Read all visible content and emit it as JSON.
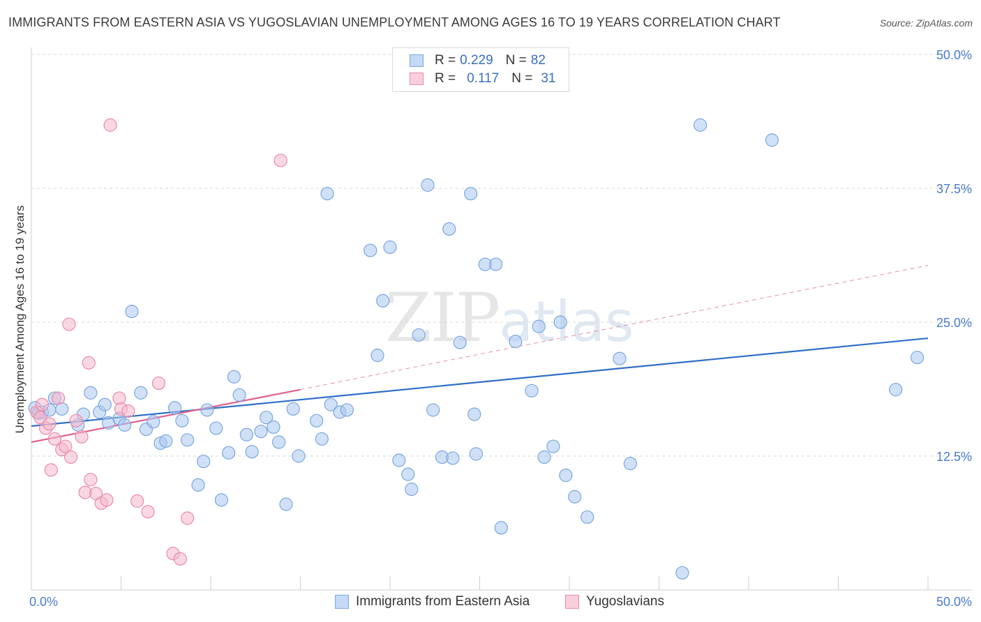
{
  "title": "IMMIGRANTS FROM EASTERN ASIA VS YUGOSLAVIAN UNEMPLOYMENT AMONG AGES 16 TO 19 YEARS CORRELATION CHART",
  "source": "Source: ZipAtlas.com",
  "watermark": {
    "zip": "ZIP",
    "atlas": "atlas"
  },
  "legend": {
    "r_label": "R =",
    "n_label": "N =",
    "rows": [
      {
        "r": "0.229",
        "n": "82"
      },
      {
        "r": "0.117",
        "n": "31"
      }
    ]
  },
  "colors": {
    "blue_fill": "#aac8f0",
    "blue_stroke": "#7aa6e0",
    "blue_line": "#2f6fc8",
    "pink_fill": "#f5b8cc",
    "pink_stroke": "#e98aaa",
    "pink_line": "#e0608e",
    "grid": "#d8d8d8",
    "tick_text": "#4a7cc9"
  },
  "chart_data": {
    "type": "scatter",
    "title": "IMMIGRANTS FROM EASTERN ASIA VS YUGOSLAVIAN UNEMPLOYMENT AMONG AGES 16 TO 19 YEARS CORRELATION CHART",
    "xlabel": "",
    "ylabel": "Unemployment Among Ages 16 to 19 years",
    "xlim": [
      0,
      50
    ],
    "ylim": [
      0,
      50
    ],
    "x_tick_labels": [
      "0.0%",
      "50.0%"
    ],
    "y_ticks": [
      12.5,
      25.0,
      37.5,
      50.0
    ],
    "y_tick_labels": [
      "12.5%",
      "25.0%",
      "37.5%",
      "50.0%"
    ],
    "grid": "horizontal dashed",
    "legend_placement": "top-center and bottom",
    "series": [
      {
        "name": "Immigrants from Eastern Asia",
        "color": "#aac8f0",
        "r": 0.229,
        "n": 82,
        "trend": {
          "x": [
            0,
            50
          ],
          "y": [
            15.3,
            23.5
          ]
        },
        "points": [
          [
            0.2,
            17.0
          ],
          [
            0.6,
            16.6
          ],
          [
            1.0,
            16.8
          ],
          [
            1.3,
            17.9
          ],
          [
            1.7,
            16.9
          ],
          [
            2.6,
            15.4
          ],
          [
            2.9,
            16.4
          ],
          [
            3.3,
            18.4
          ],
          [
            3.8,
            16.6
          ],
          [
            4.1,
            17.3
          ],
          [
            4.3,
            15.6
          ],
          [
            4.9,
            16.0
          ],
          [
            5.2,
            15.4
          ],
          [
            5.6,
            26.0
          ],
          [
            6.1,
            18.4
          ],
          [
            6.4,
            15.0
          ],
          [
            6.8,
            15.7
          ],
          [
            7.2,
            13.7
          ],
          [
            7.5,
            13.9
          ],
          [
            8.0,
            17.0
          ],
          [
            8.4,
            15.8
          ],
          [
            8.7,
            14.0
          ],
          [
            9.3,
            9.8
          ],
          [
            9.6,
            12.0
          ],
          [
            9.8,
            16.8
          ],
          [
            10.3,
            15.1
          ],
          [
            10.6,
            8.4
          ],
          [
            11.0,
            12.8
          ],
          [
            11.3,
            19.9
          ],
          [
            11.6,
            18.2
          ],
          [
            12.0,
            14.5
          ],
          [
            12.3,
            12.9
          ],
          [
            12.8,
            14.8
          ],
          [
            13.1,
            16.1
          ],
          [
            13.5,
            15.2
          ],
          [
            13.8,
            13.8
          ],
          [
            14.2,
            8.0
          ],
          [
            14.6,
            16.9
          ],
          [
            14.9,
            12.5
          ],
          [
            15.9,
            15.8
          ],
          [
            16.2,
            14.1
          ],
          [
            16.5,
            37.0
          ],
          [
            16.7,
            17.3
          ],
          [
            17.2,
            16.6
          ],
          [
            17.6,
            16.8
          ],
          [
            18.9,
            31.7
          ],
          [
            19.3,
            21.9
          ],
          [
            19.6,
            27.0
          ],
          [
            20.0,
            32.0
          ],
          [
            20.5,
            12.1
          ],
          [
            21.0,
            10.8
          ],
          [
            21.2,
            9.4
          ],
          [
            21.6,
            23.8
          ],
          [
            22.1,
            37.8
          ],
          [
            22.4,
            16.8
          ],
          [
            22.9,
            12.4
          ],
          [
            23.3,
            33.7
          ],
          [
            23.5,
            12.3
          ],
          [
            23.9,
            23.1
          ],
          [
            24.5,
            37.0
          ],
          [
            24.7,
            16.4
          ],
          [
            24.8,
            12.7
          ],
          [
            25.3,
            30.4
          ],
          [
            25.9,
            30.4
          ],
          [
            26.2,
            5.8
          ],
          [
            27.0,
            23.2
          ],
          [
            27.9,
            18.6
          ],
          [
            28.3,
            24.6
          ],
          [
            28.6,
            12.4
          ],
          [
            29.1,
            13.4
          ],
          [
            29.5,
            25.0
          ],
          [
            29.8,
            10.7
          ],
          [
            30.3,
            8.7
          ],
          [
            31.0,
            6.8
          ],
          [
            32.8,
            21.6
          ],
          [
            33.4,
            11.8
          ],
          [
            36.3,
            1.6
          ],
          [
            37.3,
            43.4
          ],
          [
            41.3,
            42.0
          ],
          [
            48.2,
            18.7
          ],
          [
            49.4,
            21.7
          ],
          [
            0.4,
            16.5
          ]
        ]
      },
      {
        "name": "Yugoslavians",
        "color": "#f5b8cc",
        "r": 0.117,
        "n": 31,
        "trend": {
          "x": [
            0,
            15
          ],
          "y": [
            13.8,
            18.7
          ],
          "dashed_to": {
            "x": [
              15,
              50
            ],
            "y": [
              18.7,
              30.3
            ]
          }
        },
        "points": [
          [
            0.3,
            16.6
          ],
          [
            0.5,
            16.1
          ],
          [
            0.8,
            15.1
          ],
          [
            1.0,
            15.5
          ],
          [
            1.1,
            11.2
          ],
          [
            1.3,
            14.1
          ],
          [
            1.5,
            17.9
          ],
          [
            1.7,
            13.1
          ],
          [
            1.9,
            13.4
          ],
          [
            2.1,
            24.8
          ],
          [
            2.2,
            12.4
          ],
          [
            2.5,
            15.8
          ],
          [
            2.8,
            14.3
          ],
          [
            3.0,
            9.1
          ],
          [
            3.2,
            21.2
          ],
          [
            3.3,
            10.3
          ],
          [
            3.6,
            9.0
          ],
          [
            3.9,
            8.1
          ],
          [
            4.2,
            8.4
          ],
          [
            4.4,
            43.4
          ],
          [
            4.9,
            17.9
          ],
          [
            5.0,
            16.9
          ],
          [
            5.4,
            16.7
          ],
          [
            5.9,
            8.3
          ],
          [
            6.5,
            7.3
          ],
          [
            7.1,
            19.3
          ],
          [
            7.9,
            3.4
          ],
          [
            8.3,
            2.9
          ],
          [
            8.7,
            6.7
          ],
          [
            13.9,
            40.1
          ],
          [
            0.6,
            17.3
          ]
        ]
      }
    ]
  }
}
